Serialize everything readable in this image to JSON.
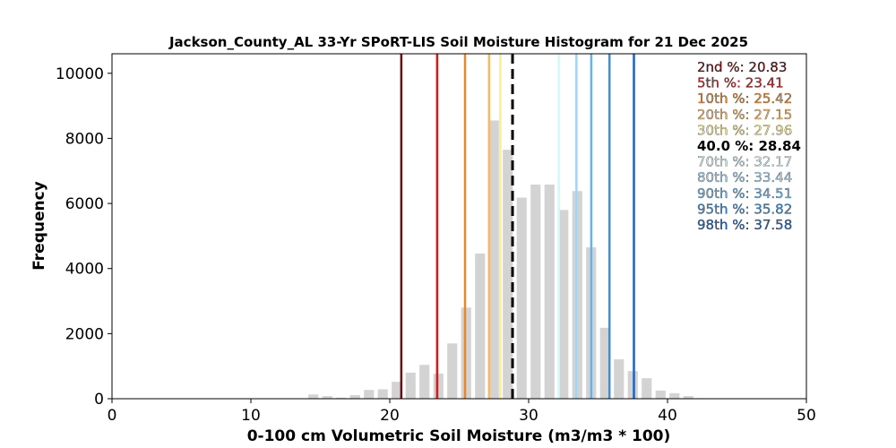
{
  "chart_data": {
    "type": "bar",
    "title": "Jackson_County_AL 33-Yr SPoRT-LIS Soil Moisture Histogram for 21 Dec 2025",
    "xlabel": "0-100 cm Volumetric Soil Moisture (m3/m3 * 100)",
    "ylabel": "Frequency",
    "xlim": [
      0,
      50
    ],
    "ylim": [
      0,
      10600
    ],
    "xticks": [
      "0",
      "10",
      "20",
      "30",
      "40",
      "50"
    ],
    "yticks": [
      "0",
      "2000",
      "4000",
      "6000",
      "8000",
      "10000"
    ],
    "bar_color": "#d3d3d3",
    "bins": [
      {
        "x": 13.5,
        "value": 10
      },
      {
        "x": 14.5,
        "value": 130
      },
      {
        "x": 15.5,
        "value": 80
      },
      {
        "x": 16.5,
        "value": 30
      },
      {
        "x": 17.5,
        "value": 110
      },
      {
        "x": 18.5,
        "value": 270
      },
      {
        "x": 19.5,
        "value": 290
      },
      {
        "x": 20.5,
        "value": 520
      },
      {
        "x": 21.5,
        "value": 800
      },
      {
        "x": 22.5,
        "value": 1040
      },
      {
        "x": 23.5,
        "value": 770
      },
      {
        "x": 24.5,
        "value": 1700
      },
      {
        "x": 25.5,
        "value": 2800
      },
      {
        "x": 26.5,
        "value": 4460
      },
      {
        "x": 27.5,
        "value": 8550
      },
      {
        "x": 28.5,
        "value": 7650
      },
      {
        "x": 29.5,
        "value": 6180
      },
      {
        "x": 30.5,
        "value": 6580
      },
      {
        "x": 31.5,
        "value": 6580
      },
      {
        "x": 32.5,
        "value": 5800
      },
      {
        "x": 33.5,
        "value": 6380
      },
      {
        "x": 34.5,
        "value": 4650
      },
      {
        "x": 35.5,
        "value": 2180
      },
      {
        "x": 36.5,
        "value": 1210
      },
      {
        "x": 37.5,
        "value": 850
      },
      {
        "x": 38.5,
        "value": 630
      },
      {
        "x": 39.5,
        "value": 250
      },
      {
        "x": 40.5,
        "value": 170
      },
      {
        "x": 41.5,
        "value": 80
      },
      {
        "x": 42.5,
        "value": 15
      }
    ],
    "percentiles": [
      {
        "label": "2nd %: 20.83",
        "value": 20.83,
        "color": "#6b0f0f",
        "dashed": false
      },
      {
        "label": "5th %: 23.41",
        "value": 23.41,
        "color": "#d41a1a",
        "dashed": false
      },
      {
        "label": "10th %: 25.42",
        "value": 25.42,
        "color": "#e8872a",
        "dashed": false
      },
      {
        "label": "20th %: 27.15",
        "value": 27.15,
        "color": "#f4b866",
        "dashed": false
      },
      {
        "label": "30th %: 27.96",
        "value": 27.96,
        "color": "#f8ee8a",
        "dashed": false
      },
      {
        "label": "40.0 %: 28.84",
        "value": 28.84,
        "color": "#000000",
        "dashed": true
      },
      {
        "label": "70th %: 32.17",
        "value": 32.17,
        "color": "#d8f6f6",
        "dashed": false
      },
      {
        "label": "80th %: 33.44",
        "value": 33.44,
        "color": "#a4d4f2",
        "dashed": false
      },
      {
        "label": "90th %: 34.51",
        "value": 34.51,
        "color": "#68b2ea",
        "dashed": false
      },
      {
        "label": "95th %: 35.82",
        "value": 35.82,
        "color": "#3b8fdf",
        "dashed": false
      },
      {
        "label": "98th %: 37.58",
        "value": 37.58,
        "color": "#1d63c0",
        "dashed": false
      }
    ]
  }
}
